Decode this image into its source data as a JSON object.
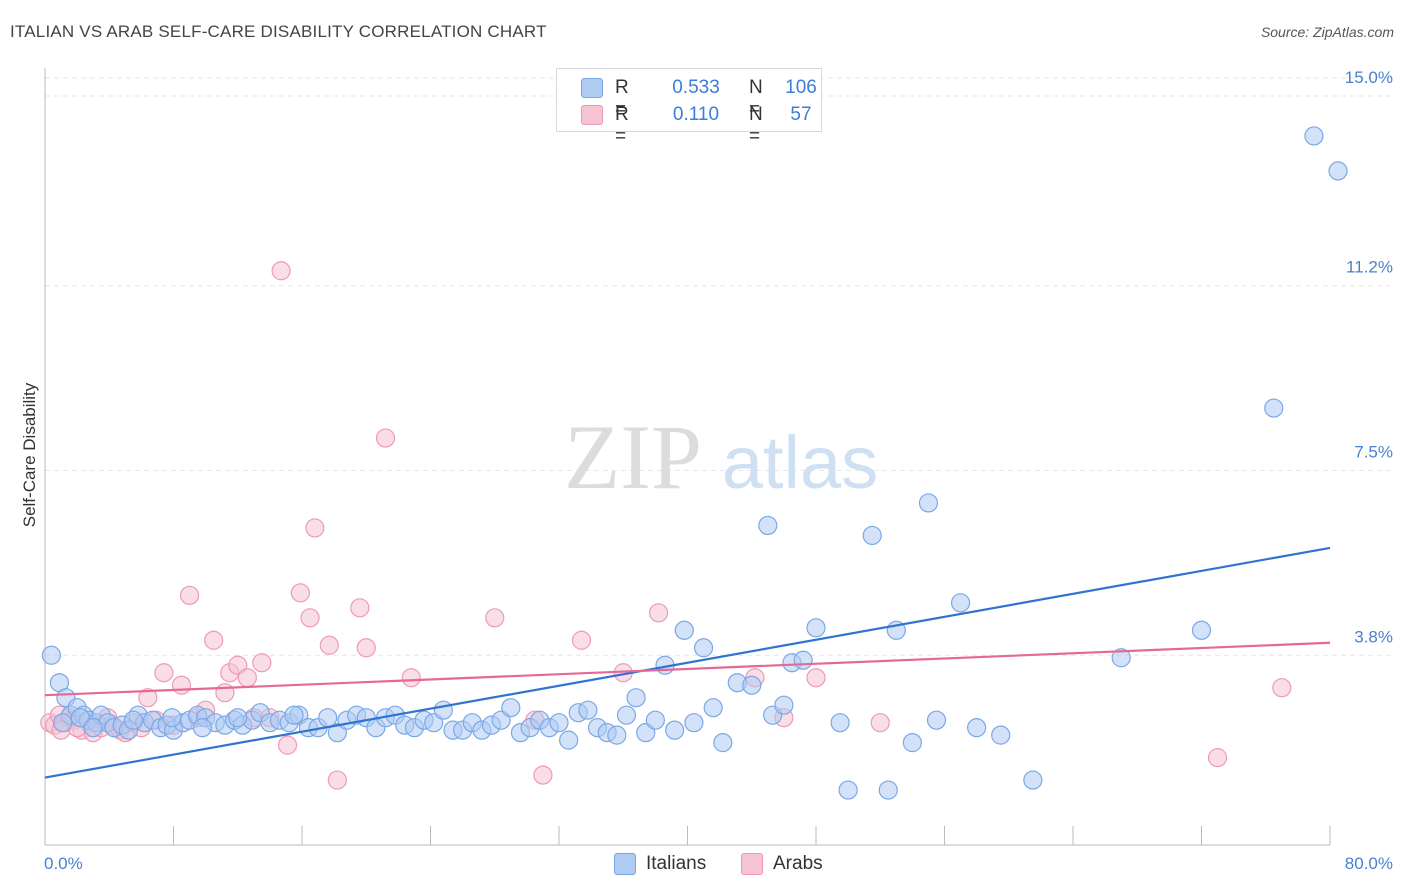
{
  "title": "ITALIAN VS ARAB SELF-CARE DISABILITY CORRELATION CHART",
  "source": "Source: ZipAtlas.com",
  "watermark": {
    "zip": "ZIP",
    "atlas": "atlas"
  },
  "legend_top": [
    {
      "r_label": "R =",
      "r_value": "0.533",
      "n_label": "N =",
      "n_value": "106"
    },
    {
      "r_label": "R =",
      "r_value": "0.110",
      "n_label": "N =",
      "n_value": "57"
    }
  ],
  "legend_bottom": {
    "italians": "Italians",
    "arabs": "Arabs"
  },
  "colors": {
    "italians_fill": "#aecbf2",
    "italians_stroke": "#7aa8e6",
    "italians_line": "#2f74d0",
    "arabs_fill": "#f6c3d3",
    "arabs_stroke": "#ef9ab5",
    "arabs_line": "#e46a95",
    "tick_label": "#4a80d0",
    "grid": "#e6e6e6"
  },
  "chart_data": {
    "type": "scatter",
    "title": "ITALIAN VS ARAB SELF-CARE DISABILITY CORRELATION CHART",
    "xlabel": "",
    "ylabel": "Self-Care Disability",
    "xlim": [
      0,
      80
    ],
    "ylim": [
      0,
      15.5
    ],
    "x_tick_labels": [
      "0.0%",
      "80.0%"
    ],
    "y_ticks": [
      {
        "value": 3.8,
        "label": "3.8%"
      },
      {
        "value": 7.5,
        "label": "7.5%"
      },
      {
        "value": 11.2,
        "label": "11.2%"
      },
      {
        "value": 15.0,
        "label": "15.0%"
      }
    ],
    "grid": "horizontal dashed",
    "series": [
      {
        "name": "Italians",
        "r": 0.533,
        "n": 106,
        "trend": {
          "x": [
            0,
            80
          ],
          "y": [
            1.35,
            5.95
          ]
        },
        "points": [
          [
            0.4,
            3.8
          ],
          [
            0.9,
            3.25
          ],
          [
            1.3,
            2.95
          ],
          [
            1.6,
            2.6
          ],
          [
            2.0,
            2.75
          ],
          [
            2.4,
            2.6
          ],
          [
            2.7,
            2.5
          ],
          [
            3.2,
            2.45
          ],
          [
            3.5,
            2.6
          ],
          [
            3.9,
            2.45
          ],
          [
            4.3,
            2.35
          ],
          [
            4.8,
            2.4
          ],
          [
            5.2,
            2.3
          ],
          [
            5.8,
            2.6
          ],
          [
            6.2,
            2.45
          ],
          [
            6.7,
            2.5
          ],
          [
            7.2,
            2.35
          ],
          [
            7.6,
            2.4
          ],
          [
            8.0,
            2.3
          ],
          [
            8.6,
            2.45
          ],
          [
            9.0,
            2.5
          ],
          [
            9.5,
            2.6
          ],
          [
            10.0,
            2.55
          ],
          [
            10.6,
            2.45
          ],
          [
            11.2,
            2.4
          ],
          [
            11.8,
            2.5
          ],
          [
            12.3,
            2.4
          ],
          [
            12.9,
            2.5
          ],
          [
            13.4,
            2.65
          ],
          [
            14.0,
            2.45
          ],
          [
            14.6,
            2.5
          ],
          [
            15.2,
            2.45
          ],
          [
            15.8,
            2.6
          ],
          [
            16.4,
            2.35
          ],
          [
            17.0,
            2.35
          ],
          [
            17.6,
            2.55
          ],
          [
            18.2,
            2.25
          ],
          [
            18.8,
            2.5
          ],
          [
            19.4,
            2.6
          ],
          [
            20.0,
            2.55
          ],
          [
            20.6,
            2.35
          ],
          [
            21.2,
            2.55
          ],
          [
            21.8,
            2.6
          ],
          [
            22.4,
            2.4
          ],
          [
            23.0,
            2.35
          ],
          [
            23.6,
            2.5
          ],
          [
            24.2,
            2.45
          ],
          [
            24.8,
            2.7
          ],
          [
            25.4,
            2.3
          ],
          [
            26.0,
            2.3
          ],
          [
            26.6,
            2.45
          ],
          [
            27.2,
            2.3
          ],
          [
            27.8,
            2.4
          ],
          [
            28.4,
            2.5
          ],
          [
            29.0,
            2.75
          ],
          [
            29.6,
            2.25
          ],
          [
            30.2,
            2.35
          ],
          [
            30.8,
            2.5
          ],
          [
            31.4,
            2.35
          ],
          [
            32.0,
            2.45
          ],
          [
            32.6,
            2.1
          ],
          [
            33.2,
            2.65
          ],
          [
            33.8,
            2.7
          ],
          [
            34.4,
            2.35
          ],
          [
            35.0,
            2.25
          ],
          [
            35.6,
            2.2
          ],
          [
            36.2,
            2.6
          ],
          [
            36.8,
            2.95
          ],
          [
            37.4,
            2.25
          ],
          [
            38.0,
            2.5
          ],
          [
            38.6,
            3.6
          ],
          [
            39.2,
            2.3
          ],
          [
            39.8,
            4.3
          ],
          [
            40.4,
            2.45
          ],
          [
            41.0,
            3.95
          ],
          [
            41.6,
            2.75
          ],
          [
            42.2,
            2.05
          ],
          [
            43.1,
            3.25
          ],
          [
            44.0,
            3.2
          ],
          [
            45.0,
            6.4
          ],
          [
            45.3,
            2.6
          ],
          [
            46.0,
            2.8
          ],
          [
            46.5,
            3.65
          ],
          [
            47.2,
            3.7
          ],
          [
            48.0,
            4.35
          ],
          [
            49.5,
            2.45
          ],
          [
            50.0,
            1.1
          ],
          [
            51.5,
            6.2
          ],
          [
            52.5,
            1.1
          ],
          [
            53.0,
            4.3
          ],
          [
            54.0,
            2.05
          ],
          [
            55.0,
            6.85
          ],
          [
            55.5,
            2.5
          ],
          [
            57.0,
            4.85
          ],
          [
            58.0,
            2.35
          ],
          [
            59.5,
            2.2
          ],
          [
            61.5,
            1.3
          ],
          [
            67.0,
            3.75
          ],
          [
            72.0,
            4.3
          ],
          [
            76.5,
            8.75
          ],
          [
            79.0,
            14.2
          ],
          [
            80.5,
            13.5
          ],
          [
            1.1,
            2.45
          ],
          [
            2.2,
            2.55
          ],
          [
            3.0,
            2.35
          ],
          [
            5.5,
            2.5
          ],
          [
            7.9,
            2.55
          ],
          [
            9.8,
            2.35
          ],
          [
            12.0,
            2.55
          ],
          [
            15.5,
            2.6
          ]
        ]
      },
      {
        "name": "Arabs",
        "r": 0.11,
        "n": 57,
        "trend": {
          "x": [
            0,
            80
          ],
          "y": [
            3.0,
            4.05
          ]
        },
        "points": [
          [
            0.3,
            2.45
          ],
          [
            0.6,
            2.4
          ],
          [
            0.9,
            2.6
          ],
          [
            1.2,
            2.45
          ],
          [
            1.5,
            2.55
          ],
          [
            1.8,
            2.5
          ],
          [
            2.3,
            2.3
          ],
          [
            2.7,
            2.45
          ],
          [
            3.0,
            2.25
          ],
          [
            3.5,
            2.35
          ],
          [
            3.9,
            2.55
          ],
          [
            4.2,
            2.4
          ],
          [
            4.7,
            2.3
          ],
          [
            5.0,
            2.25
          ],
          [
            5.5,
            2.45
          ],
          [
            6.0,
            2.35
          ],
          [
            6.4,
            2.95
          ],
          [
            6.9,
            2.5
          ],
          [
            7.4,
            3.45
          ],
          [
            8.0,
            2.4
          ],
          [
            8.5,
            3.2
          ],
          [
            9.0,
            5.0
          ],
          [
            9.5,
            2.55
          ],
          [
            10.0,
            2.7
          ],
          [
            10.5,
            4.1
          ],
          [
            11.2,
            3.05
          ],
          [
            11.5,
            3.45
          ],
          [
            12.0,
            3.6
          ],
          [
            12.6,
            3.35
          ],
          [
            13.0,
            2.55
          ],
          [
            13.5,
            3.65
          ],
          [
            14.0,
            2.55
          ],
          [
            14.7,
            11.5
          ],
          [
            15.1,
            2.0
          ],
          [
            15.9,
            5.05
          ],
          [
            16.5,
            4.55
          ],
          [
            16.8,
            6.35
          ],
          [
            17.7,
            4.0
          ],
          [
            18.2,
            1.3
          ],
          [
            19.6,
            4.75
          ],
          [
            20.0,
            3.95
          ],
          [
            21.2,
            8.15
          ],
          [
            22.8,
            3.35
          ],
          [
            28.0,
            4.55
          ],
          [
            30.5,
            2.5
          ],
          [
            31.0,
            1.4
          ],
          [
            33.4,
            4.1
          ],
          [
            36.0,
            3.45
          ],
          [
            38.2,
            4.65
          ],
          [
            44.2,
            3.35
          ],
          [
            46.0,
            2.55
          ],
          [
            48.0,
            3.35
          ],
          [
            52.0,
            2.45
          ],
          [
            73.0,
            1.75
          ],
          [
            77.0,
            3.15
          ],
          [
            1.0,
            2.3
          ],
          [
            2.0,
            2.35
          ]
        ]
      }
    ]
  }
}
